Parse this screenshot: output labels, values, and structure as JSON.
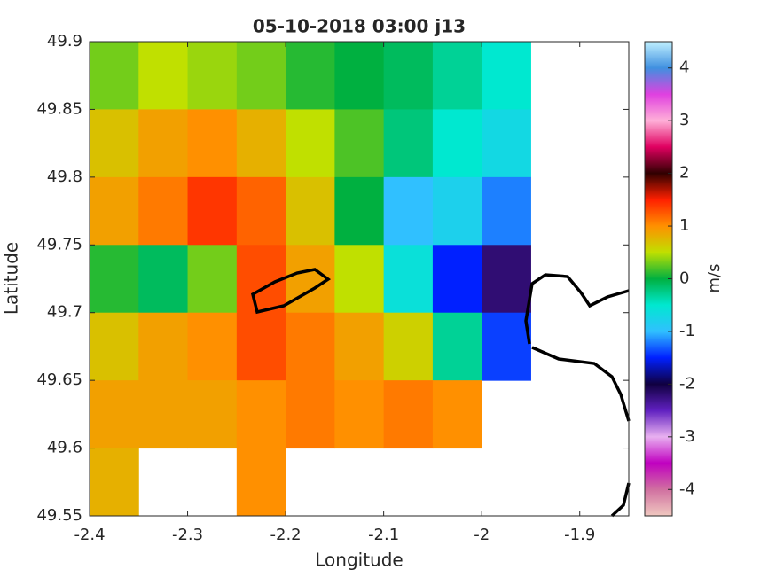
{
  "chart_data": {
    "type": "heatmap",
    "title": "05-10-2018 03:00 j13",
    "xlabel": "Longitude",
    "ylabel": "Latitude",
    "x": [
      -2.375,
      -2.325,
      -2.275,
      -2.225,
      -2.175,
      -2.125,
      -2.075,
      -2.025,
      -1.975,
      -1.925,
      -1.875
    ],
    "y": [
      49.875,
      49.825,
      49.775,
      49.725,
      49.675,
      49.625,
      49.575
    ],
    "z": [
      [
        0.3,
        0.5,
        0.4,
        0.3,
        0.1,
        0.0,
        -0.1,
        -0.3,
        -0.5,
        null,
        null
      ],
      [
        0.7,
        0.9,
        1.0,
        0.8,
        0.5,
        0.2,
        -0.2,
        -0.5,
        -0.7,
        null,
        null
      ],
      [
        0.9,
        1.1,
        1.4,
        1.2,
        0.7,
        0.0,
        -1.0,
        -0.8,
        -1.2,
        null,
        null
      ],
      [
        0.1,
        -0.1,
        0.3,
        1.3,
        0.9,
        0.5,
        -0.6,
        -1.5,
        -2.2,
        null,
        null
      ],
      [
        0.7,
        0.9,
        1.0,
        1.3,
        1.1,
        0.9,
        0.6,
        -0.3,
        -1.4,
        null,
        null
      ],
      [
        0.9,
        0.9,
        0.9,
        1.0,
        1.1,
        1.0,
        1.1,
        1.0,
        null,
        null,
        null
      ],
      [
        0.8,
        null,
        null,
        1.0,
        null,
        null,
        null,
        null,
        null,
        null,
        null
      ]
    ],
    "xlim": [
      -2.4,
      -1.85
    ],
    "xticks": [
      -2.4,
      -2.3,
      -2.2,
      -2.1,
      -2,
      -1.9
    ],
    "ylim": [
      49.55,
      49.9
    ],
    "yticks": [
      49.55,
      49.6,
      49.65,
      49.7,
      49.75,
      49.8,
      49.85,
      49.9
    ],
    "clim": [
      -4.5,
      4.5
    ],
    "cticks": [
      -4,
      -3,
      -2,
      -1,
      0,
      1,
      2,
      3,
      4
    ],
    "clabel": "m/s",
    "colormap": [
      "#f0c8c0",
      "#d070a0",
      "#c000c0",
      "#e8b0f0",
      "#6020c0",
      "#100040",
      "#0020ff",
      "#30c0ff",
      "#00e8d0",
      "#00b040",
      "#c0e000",
      "#ff9000",
      "#ff2000",
      "#300000",
      "#e00060",
      "#ffb0d8",
      "#e040e0",
      "#4090e0",
      "#c0f0ff"
    ]
  }
}
